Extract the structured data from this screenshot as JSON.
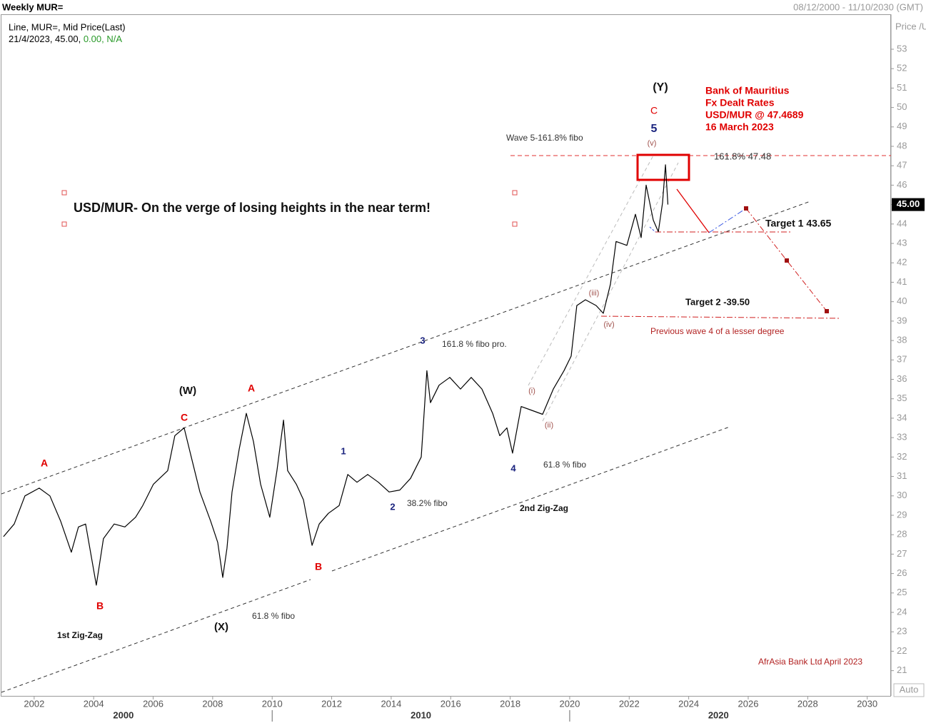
{
  "chart_data": {
    "type": "line",
    "title": "Weekly MUR=",
    "date_range": "08/12/2000 - 11/10/2030 (GMT)",
    "legend_values": [
      "21/4/2023, 45.00,",
      "0.00, N/A"
    ],
    "y_axis_label": "Price /USD",
    "auto_button": "Auto",
    "last_price": {
      "value": 45,
      "label": "45.00"
    },
    "x": [
      2000.97,
      2001.33,
      2001.69,
      2002.17,
      2002.53,
      2002.89,
      2003.25,
      2003.49,
      2003.73,
      2004.09,
      2004.33,
      2004.69,
      2005.05,
      2005.41,
      2005.65,
      2006.01,
      2006.49,
      2006.73,
      2007.04,
      2007.28,
      2007.57,
      2007.93,
      2008.17,
      2008.34,
      2008.48,
      2008.65,
      2008.89,
      2009.13,
      2009.37,
      2009.61,
      2009.92,
      2010.16,
      2010.38,
      2010.52,
      2010.81,
      2011.05,
      2011.34,
      2011.58,
      2011.89,
      2012.25,
      2012.54,
      2012.85,
      2013.21,
      2013.57,
      2013.93,
      2014.29,
      2014.65,
      2015.01,
      2015.2,
      2015.32,
      2015.61,
      2015.97,
      2016.33,
      2016.69,
      2017.05,
      2017.41,
      2017.65,
      2017.89,
      2018.08,
      2018.37,
      2018.73,
      2019.09,
      2019.45,
      2019.81,
      2020.05,
      2020.24,
      2020.53,
      2020.89,
      2021.13,
      2021.37,
      2021.56,
      2021.92,
      2022.21,
      2022.4,
      2022.57,
      2022.81,
      2022.98,
      2023.12,
      2023.22,
      2023.3
    ],
    "series": [
      {
        "name": "Line, MUR=, Mid Price(Last)",
        "color": "#000000",
        "values": [
          27.9,
          28.55,
          30.0,
          30.4,
          30.0,
          28.7,
          27.1,
          28.4,
          28.55,
          25.4,
          27.8,
          28.55,
          28.4,
          28.9,
          29.5,
          30.6,
          31.3,
          33.1,
          33.5,
          32.0,
          30.2,
          28.7,
          27.6,
          25.8,
          27.3,
          30.2,
          32.4,
          34.25,
          32.8,
          30.6,
          28.9,
          31.3,
          33.9,
          31.3,
          30.6,
          29.8,
          27.45,
          28.55,
          29.1,
          29.5,
          31.1,
          30.7,
          31.1,
          30.7,
          30.2,
          30.3,
          30.9,
          32.0,
          36.45,
          34.8,
          35.7,
          36.1,
          35.5,
          36.1,
          35.5,
          34.25,
          33.1,
          33.5,
          32.2,
          34.6,
          34.4,
          34.2,
          35.5,
          36.45,
          37.2,
          39.8,
          40.1,
          39.8,
          39.4,
          40.9,
          43.1,
          42.9,
          44.5,
          43.3,
          46.0,
          44.2,
          43.6,
          45.1,
          47.05,
          45.0
        ]
      }
    ],
    "xlim": [
      2000.9,
      2030.8
    ],
    "ylim": [
      19.7,
      54.8
    ],
    "xticks": [
      2002,
      2004,
      2006,
      2008,
      2010,
      2012,
      2014,
      2016,
      2018,
      2020,
      2022,
      2024,
      2026,
      2028,
      2030
    ],
    "x2ticks": [
      2000,
      2010,
      2020
    ],
    "yticks": [
      21,
      22,
      23,
      24,
      25,
      26,
      27,
      28,
      29,
      30,
      31,
      32,
      33,
      34,
      35,
      36,
      37,
      38,
      39,
      40,
      41,
      42,
      43,
      44,
      45,
      46,
      47,
      48,
      49,
      50,
      51,
      52,
      53
    ],
    "grid": false,
    "annotations": [
      "USD/MUR- On the verge of losing heights in the near term!",
      "Bank of Mauritius",
      "Fx Dealt Rates",
      "USD/MUR @ 47.4689",
      "16 March 2023",
      "(Y)",
      "C",
      "5",
      "(v)",
      "Wave 5-161.8% fibo",
      "161.8% 47.48",
      "Target 1 43.65",
      "Target 2 -39.50",
      "Previous wave 4 of a lesser degree",
      "(iii)",
      "(iv)",
      "(i)",
      "(ii)",
      "3",
      "161.8 % fibo pro.",
      "(W)",
      "A",
      "C",
      "A",
      "1",
      "4",
      "61.8 % fibo",
      "2",
      "38.2% fibo",
      "2nd Zig-Zag",
      "B",
      "B",
      "(X)",
      "61.8 % fibo",
      "1st Zig-Zag",
      "AfrAsia Bank Ltd April 2023"
    ]
  }
}
